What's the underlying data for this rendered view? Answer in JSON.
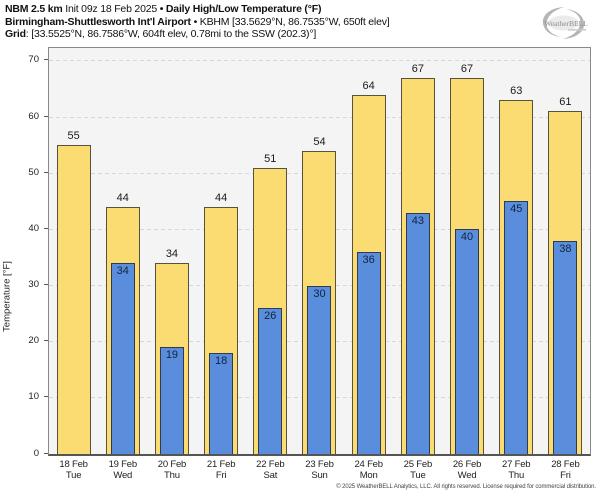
{
  "title": {
    "model": "NBM 2.5 km",
    "init": "Init 09z 18 Feb 2025",
    "separator": "•",
    "product": "Daily High/Low Temperature (°F)",
    "station": "Birmingham-Shuttlesworth Int'l Airport",
    "station_details": "KBHM [33.5629°N, 86.7535°W, 650ft elev]",
    "grid_label": "Grid",
    "grid_details": ": [33.5525°N, 86.7586°W, 604ft elev, 0.78mi to the SSW (202.3)°]"
  },
  "logo": {
    "text": "WeatherBELL"
  },
  "footer": {
    "copyright": "© 2025 WeatherBELL Analytics, LLC. All rights reserved. License required for commercial distribution."
  },
  "colors": {
    "high_fill": "#fbdc73",
    "high_border": "#56523c",
    "low_fill": "#5b8ddd",
    "low_border": "#2e3b52",
    "plot_bg": "#f4f4f4",
    "plot_border": "#8a8a8a",
    "grid_line": "#d7d7d7",
    "label_text": "#1a1a1a"
  },
  "chart_data": {
    "type": "bar",
    "title": "Daily High/Low Temperature (°F)",
    "xlabel": "",
    "ylabel": "Temperature [°F]",
    "ylim": [
      0,
      72.3
    ],
    "yticks": [
      0,
      10,
      20,
      30,
      40,
      50,
      60,
      70
    ],
    "grid": "horizontal dashed",
    "legend_position": "none",
    "categories": [
      {
        "date": "18 Feb",
        "day": "Tue"
      },
      {
        "date": "19 Feb",
        "day": "Wed"
      },
      {
        "date": "20 Feb",
        "day": "Thu"
      },
      {
        "date": "21 Feb",
        "day": "Fri"
      },
      {
        "date": "22 Feb",
        "day": "Sat"
      },
      {
        "date": "23 Feb",
        "day": "Sun"
      },
      {
        "date": "24 Feb",
        "day": "Mon"
      },
      {
        "date": "25 Feb",
        "day": "Tue"
      },
      {
        "date": "26 Feb",
        "day": "Wed"
      },
      {
        "date": "27 Feb",
        "day": "Thu"
      },
      {
        "date": "28 Feb",
        "day": "Fri"
      }
    ],
    "series": [
      {
        "name": "Daily High",
        "values": [
          55,
          44,
          34,
          44,
          51,
          54,
          64,
          67,
          67,
          63,
          61
        ]
      },
      {
        "name": "Daily Low",
        "values": [
          null,
          34,
          19,
          18,
          26,
          30,
          36,
          43,
          40,
          45,
          38
        ]
      }
    ]
  }
}
